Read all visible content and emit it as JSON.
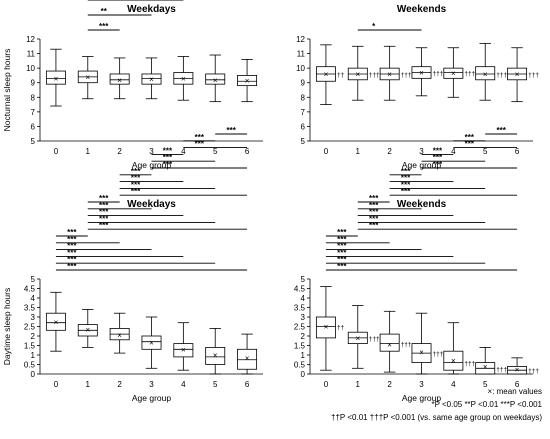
{
  "chart_data": [
    {
      "type": "boxplot",
      "title": "Weekdays",
      "ylabel": "Nocturnal sleep hours",
      "xlabel": "Age group",
      "categories": [
        "0",
        "1",
        "2",
        "3",
        "4",
        "5",
        "6"
      ],
      "ylim": [
        5,
        12
      ],
      "yticks": [
        5,
        6,
        7,
        8,
        9,
        10,
        11,
        12
      ],
      "boxes": [
        {
          "whislo": 7.4,
          "q1": 8.9,
          "med": 9.3,
          "q3": 9.8,
          "whishi": 11.3,
          "mean": 9.3
        },
        {
          "whislo": 7.9,
          "q1": 9.0,
          "med": 9.4,
          "q3": 9.8,
          "whishi": 10.8,
          "mean": 9.4
        },
        {
          "whislo": 7.9,
          "q1": 8.9,
          "med": 9.2,
          "q3": 9.6,
          "whishi": 10.7,
          "mean": 9.2
        },
        {
          "whislo": 7.9,
          "q1": 8.9,
          "med": 9.3,
          "q3": 9.6,
          "whishi": 10.7,
          "mean": 9.25
        },
        {
          "whislo": 7.8,
          "q1": 8.9,
          "med": 9.3,
          "q3": 9.7,
          "whishi": 10.8,
          "mean": 9.3
        },
        {
          "whislo": 7.7,
          "q1": 8.9,
          "med": 9.2,
          "q3": 9.6,
          "whishi": 10.9,
          "mean": 9.2
        },
        {
          "whislo": 7.7,
          "q1": 8.8,
          "med": 9.1,
          "q3": 9.5,
          "whishi": 10.6,
          "mean": 9.15
        }
      ],
      "box_marks": [],
      "comparisons": [
        {
          "from": 1,
          "to": 2,
          "label": "***"
        },
        {
          "from": 1,
          "to": 3,
          "label": "**"
        },
        {
          "from": 1,
          "to": 4,
          "label": "*"
        },
        {
          "from": 1,
          "to": 6,
          "label": "*"
        }
      ]
    },
    {
      "type": "boxplot",
      "title": "Weekends",
      "ylabel": "",
      "xlabel": "Age group",
      "categories": [
        "0",
        "1",
        "2",
        "3",
        "4",
        "5",
        "6"
      ],
      "ylim": [
        5,
        12
      ],
      "yticks": [
        5,
        6,
        7,
        8,
        9,
        10,
        11,
        12
      ],
      "boxes": [
        {
          "whislo": 7.5,
          "q1": 9.1,
          "med": 9.6,
          "q3": 10.1,
          "whishi": 11.6,
          "mean": 9.6
        },
        {
          "whislo": 7.8,
          "q1": 9.2,
          "med": 9.6,
          "q3": 10.0,
          "whishi": 11.5,
          "mean": 9.6
        },
        {
          "whislo": 7.8,
          "q1": 9.2,
          "med": 9.6,
          "q3": 10.0,
          "whishi": 11.5,
          "mean": 9.6
        },
        {
          "whislo": 8.1,
          "q1": 9.3,
          "med": 9.7,
          "q3": 10.1,
          "whishi": 11.4,
          "mean": 9.7
        },
        {
          "whislo": 8.0,
          "q1": 9.3,
          "med": 9.7,
          "q3": 10.0,
          "whishi": 11.4,
          "mean": 9.65
        },
        {
          "whislo": 7.8,
          "q1": 9.2,
          "med": 9.6,
          "q3": 10.1,
          "whishi": 11.7,
          "mean": 9.6
        },
        {
          "whislo": 7.7,
          "q1": 9.2,
          "med": 9.6,
          "q3": 10.0,
          "whishi": 11.4,
          "mean": 9.6
        }
      ],
      "box_marks": [
        "††",
        "†††",
        "†††",
        "†††",
        "†††",
        "†††",
        "†††"
      ],
      "comparisons": [
        {
          "from": 1,
          "to": 3,
          "label": "*"
        }
      ]
    },
    {
      "type": "boxplot",
      "title": "Weekdays",
      "ylabel": "Daytime sleep hours",
      "xlabel": "Age group",
      "categories": [
        "0",
        "1",
        "2",
        "3",
        "4",
        "5",
        "6"
      ],
      "ylim": [
        0,
        5
      ],
      "yticks": [
        0,
        0.5,
        1,
        1.5,
        2,
        2.5,
        3,
        3.5,
        4,
        4.5,
        5
      ],
      "boxes": [
        {
          "whislo": 1.2,
          "q1": 2.3,
          "med": 2.7,
          "q3": 3.2,
          "whishi": 4.3,
          "mean": 2.75
        },
        {
          "whislo": 1.4,
          "q1": 2.0,
          "med": 2.3,
          "q3": 2.6,
          "whishi": 3.4,
          "mean": 2.35
        },
        {
          "whislo": 1.1,
          "q1": 1.8,
          "med": 2.1,
          "q3": 2.4,
          "whishi": 3.2,
          "mean": 2.05
        },
        {
          "whislo": 0.3,
          "q1": 1.3,
          "med": 1.7,
          "q3": 2.0,
          "whishi": 3.0,
          "mean": 1.65
        },
        {
          "whislo": 0.2,
          "q1": 0.9,
          "med": 1.3,
          "q3": 1.6,
          "whishi": 2.7,
          "mean": 1.3
        },
        {
          "whislo": 0.0,
          "q1": 0.5,
          "med": 0.9,
          "q3": 1.4,
          "whishi": 2.4,
          "mean": 1.0
        },
        {
          "whislo": 0.0,
          "q1": 0.25,
          "med": 0.75,
          "q3": 1.3,
          "whishi": 2.1,
          "mean": 0.85
        }
      ],
      "box_marks": [],
      "comparisons": [
        {
          "from": 0,
          "to": 6,
          "label": "***"
        },
        {
          "from": 0,
          "to": 5,
          "label": "***"
        },
        {
          "from": 0,
          "to": 4,
          "label": "***"
        },
        {
          "from": 0,
          "to": 3,
          "label": "***"
        },
        {
          "from": 0,
          "to": 2,
          "label": "***"
        },
        {
          "from": 0,
          "to": 1,
          "label": "***"
        },
        {
          "from": 1,
          "to": 6,
          "label": "***"
        },
        {
          "from": 1,
          "to": 5,
          "label": "***"
        },
        {
          "from": 1,
          "to": 4,
          "label": "***"
        },
        {
          "from": 1,
          "to": 3,
          "label": "***"
        },
        {
          "from": 1,
          "to": 2,
          "label": "***"
        },
        {
          "from": 2,
          "to": 6,
          "label": "***"
        },
        {
          "from": 2,
          "to": 5,
          "label": "***"
        },
        {
          "from": 2,
          "to": 4,
          "label": "***"
        },
        {
          "from": 2,
          "to": 3,
          "label": "***"
        },
        {
          "from": 3,
          "to": 6,
          "label": "***"
        },
        {
          "from": 3,
          "to": 5,
          "label": "***"
        },
        {
          "from": 3,
          "to": 4,
          "label": "***"
        },
        {
          "from": 4,
          "to": 6,
          "label": "***"
        },
        {
          "from": 4,
          "to": 5,
          "label": "***"
        },
        {
          "from": 5,
          "to": 6,
          "label": "***"
        }
      ]
    },
    {
      "type": "boxplot",
      "title": "Weekends",
      "ylabel": "",
      "xlabel": "Age group",
      "categories": [
        "0",
        "1",
        "2",
        "3",
        "4",
        "5",
        "6"
      ],
      "ylim": [
        0,
        5
      ],
      "yticks": [
        0,
        0.5,
        1,
        1.5,
        2,
        2.5,
        3,
        3.5,
        4,
        4.5,
        5
      ],
      "boxes": [
        {
          "whislo": 0.2,
          "q1": 1.9,
          "med": 2.5,
          "q3": 3.0,
          "whishi": 4.6,
          "mean": 2.5
        },
        {
          "whislo": 0.3,
          "q1": 1.6,
          "med": 1.9,
          "q3": 2.2,
          "whishi": 3.6,
          "mean": 1.9
        },
        {
          "whislo": 0.1,
          "q1": 1.2,
          "med": 1.6,
          "q3": 2.1,
          "whishi": 3.3,
          "mean": 1.55
        },
        {
          "whislo": 0.0,
          "q1": 0.6,
          "med": 1.1,
          "q3": 1.6,
          "whishi": 3.2,
          "mean": 1.15
        },
        {
          "whislo": 0.0,
          "q1": 0.2,
          "med": 0.6,
          "q3": 1.2,
          "whishi": 2.7,
          "mean": 0.7
        },
        {
          "whislo": 0.0,
          "q1": 0.0,
          "med": 0.3,
          "q3": 0.6,
          "whishi": 1.4,
          "mean": 0.4
        },
        {
          "whislo": 0.0,
          "q1": 0.0,
          "med": 0.2,
          "q3": 0.4,
          "whishi": 0.85,
          "mean": 0.25
        }
      ],
      "box_marks": [
        "††",
        "†††",
        "†††",
        "†††",
        "†††",
        "†††",
        "†††"
      ],
      "comparisons": [
        {
          "from": 0,
          "to": 6,
          "label": "***"
        },
        {
          "from": 0,
          "to": 5,
          "label": "***"
        },
        {
          "from": 0,
          "to": 4,
          "label": "***"
        },
        {
          "from": 0,
          "to": 3,
          "label": "***"
        },
        {
          "from": 0,
          "to": 2,
          "label": "***"
        },
        {
          "from": 0,
          "to": 1,
          "label": "***"
        },
        {
          "from": 1,
          "to": 6,
          "label": "***"
        },
        {
          "from": 1,
          "to": 5,
          "label": "***"
        },
        {
          "from": 1,
          "to": 4,
          "label": "***"
        },
        {
          "from": 1,
          "to": 3,
          "label": "***"
        },
        {
          "from": 1,
          "to": 2,
          "label": "***"
        },
        {
          "from": 2,
          "to": 6,
          "label": "***"
        },
        {
          "from": 2,
          "to": 5,
          "label": "***"
        },
        {
          "from": 2,
          "to": 4,
          "label": "***"
        },
        {
          "from": 2,
          "to": 3,
          "label": "***"
        },
        {
          "from": 3,
          "to": 6,
          "label": "***"
        },
        {
          "from": 3,
          "to": 5,
          "label": "***"
        },
        {
          "from": 3,
          "to": 4,
          "label": "***"
        },
        {
          "from": 4,
          "to": 6,
          "label": "***"
        },
        {
          "from": 4,
          "to": 5,
          "label": "***"
        },
        {
          "from": 5,
          "to": 6,
          "label": "***"
        }
      ]
    }
  ],
  "notes": {
    "mean_marker": "×",
    "mean_label": ": mean values",
    "p_line": "*P <0.05 **P <0.01 ***P <0.001",
    "dagger_line": "††P <0.01 †††P <0.001  (vs. same age group on weekdays)"
  }
}
